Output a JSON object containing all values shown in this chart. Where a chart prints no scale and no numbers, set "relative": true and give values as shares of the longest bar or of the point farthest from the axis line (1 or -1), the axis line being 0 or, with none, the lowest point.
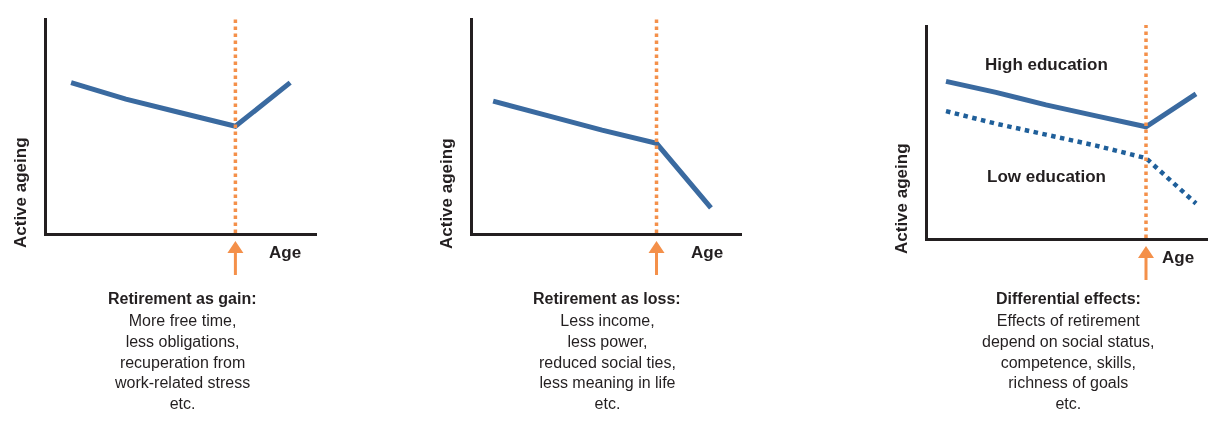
{
  "chart_data": [
    {
      "type": "line",
      "title": "Retirement as gain:",
      "xlabel": "Age",
      "ylabel": "Active ageing",
      "relative": true,
      "categories": [
        null,
        null,
        null,
        null,
        null
      ],
      "series": [
        {
          "color": "#3a6aa0",
          "line_style": "solid",
          "values": [
            1,
            0.89,
            0.8,
            0.71,
            1
          ]
        }
      ],
      "annotations": [
        "More free time,\nless obligations,\nrecuperation from\nwork-related stress\netc."
      ]
    },
    {
      "type": "line",
      "title": "Retirement as loss:",
      "xlabel": "Age",
      "ylabel": "Active ageing",
      "relative": true,
      "categories": [
        null,
        null,
        null,
        null,
        null
      ],
      "series": [
        {
          "color": "#3a6aa0",
          "line_style": "solid",
          "values": [
            1,
            0.89,
            0.78,
            0.68,
            0.19
          ]
        }
      ],
      "annotations": [
        "Less income,\nless power,\nreduced social ties,\nless meaning in life\netc."
      ]
    },
    {
      "type": "line",
      "title": "Differential effects:",
      "xlabel": "Age",
      "ylabel": "Active ageing",
      "relative": true,
      "categories": [
        null,
        null,
        null,
        null,
        null,
        null
      ],
      "series": [
        {
          "name": "High education",
          "color": "#3a6aa0",
          "line_style": "solid",
          "values": [
            1,
            0.93,
            0.85,
            0.78,
            0.71,
            0.92
          ]
        },
        {
          "name": "Low education",
          "color": "#1f5f9a",
          "line_style": "dotted",
          "values": [
            0.81,
            0.73,
            0.66,
            0.59,
            0.51,
            0.22
          ]
        }
      ],
      "annotations": [
        "Effects of retirement\ndepend on social status,\ncompetence, skills,\nrichness of goals\netc."
      ]
    }
  ]
}
